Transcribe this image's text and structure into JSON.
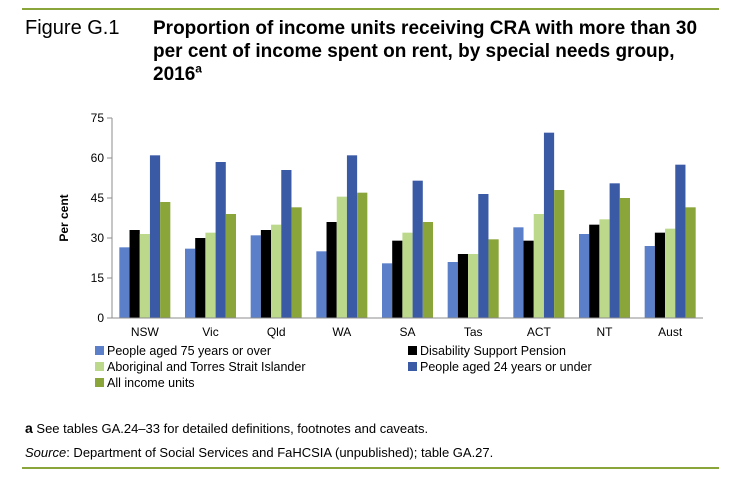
{
  "figure": {
    "label": "Figure G.1",
    "title": "Proportion of income units receiving CRA with more than 30 per cent of income spent on rent, by special needs group, 2016",
    "title_superscript": "a"
  },
  "footnote": {
    "marker": "a",
    "text": " See tables GA.24–33 for detailed definitions, footnotes and caveats."
  },
  "source": {
    "label": "Source",
    "text": ": Department of Social Services and FaHCSIA (unpublished); table GA.27."
  },
  "colors": {
    "rule": "#8aa53a"
  },
  "chart_data": {
    "type": "bar",
    "ylabel": "Per cent",
    "xlabel": "",
    "ylim": [
      0,
      75
    ],
    "yticks": [
      0,
      15,
      30,
      45,
      60,
      75
    ],
    "grid": false,
    "legend_position": "bottom",
    "categories": [
      "NSW",
      "Vic",
      "Qld",
      "WA",
      "SA",
      "Tas",
      "ACT",
      "NT",
      "Aust"
    ],
    "series": [
      {
        "name": "People aged 75 years or over",
        "color": "#5b7fc8",
        "values": [
          26.5,
          26,
          31,
          25,
          20.5,
          21,
          34,
          31.5,
          27
        ]
      },
      {
        "name": "Disability Support Pension",
        "color": "#000000",
        "values": [
          33,
          30,
          33,
          36,
          29,
          24,
          29,
          35,
          32
        ]
      },
      {
        "name": "Aboriginal and Torres Strait Islander",
        "color": "#bcd88a",
        "values": [
          31.5,
          32,
          35,
          45.5,
          32,
          24,
          39,
          37,
          33.5
        ]
      },
      {
        "name": "People aged 24 years or under",
        "color": "#3a5aa6",
        "values": [
          61,
          58.5,
          55.5,
          61,
          51.5,
          46.5,
          69.5,
          50.5,
          57.5
        ]
      },
      {
        "name": "All income units",
        "color": "#8aa53a",
        "values": [
          43.5,
          39,
          41.5,
          47,
          36,
          29.5,
          48,
          45,
          41.5
        ]
      }
    ]
  }
}
